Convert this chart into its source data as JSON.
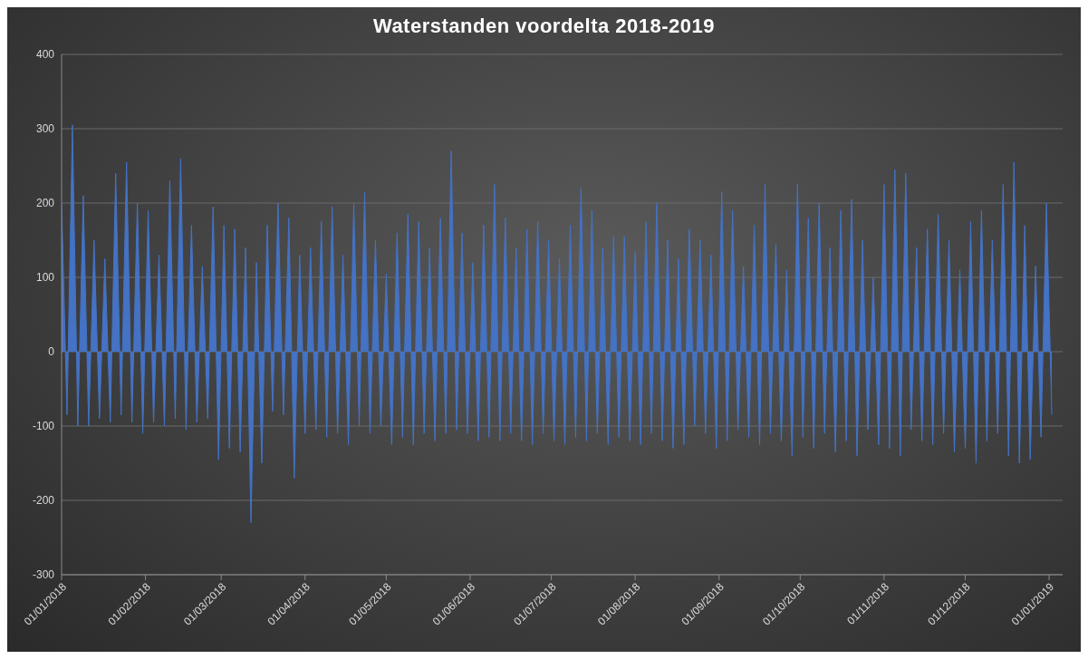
{
  "chart_data": {
    "type": "area",
    "title": "Waterstanden voordelta 2018-2019",
    "x": [
      "2018-01-01",
      "2018-01-03",
      "2018-01-05",
      "2018-01-07",
      "2018-01-09",
      "2018-01-11",
      "2018-01-13",
      "2018-01-15",
      "2018-01-17",
      "2018-01-19",
      "2018-01-21",
      "2018-01-23",
      "2018-01-25",
      "2018-01-27",
      "2018-01-29",
      "2018-01-31",
      "2018-02-02",
      "2018-02-04",
      "2018-02-06",
      "2018-02-08",
      "2018-02-10",
      "2018-02-12",
      "2018-02-14",
      "2018-02-16",
      "2018-02-18",
      "2018-02-20",
      "2018-02-22",
      "2018-02-24",
      "2018-02-26",
      "2018-02-28",
      "2018-03-02",
      "2018-03-04",
      "2018-03-06",
      "2018-03-08",
      "2018-03-10",
      "2018-03-12",
      "2018-03-14",
      "2018-03-16",
      "2018-03-18",
      "2018-03-20",
      "2018-03-22",
      "2018-03-24",
      "2018-03-26",
      "2018-03-28",
      "2018-03-30",
      "2018-04-01",
      "2018-04-03",
      "2018-04-05",
      "2018-04-07",
      "2018-04-09",
      "2018-04-11",
      "2018-04-13",
      "2018-04-15",
      "2018-04-17",
      "2018-04-19",
      "2018-04-21",
      "2018-04-23",
      "2018-04-25",
      "2018-04-27",
      "2018-04-29",
      "2018-05-01",
      "2018-05-03",
      "2018-05-05",
      "2018-05-07",
      "2018-05-09",
      "2018-05-11",
      "2018-05-13",
      "2018-05-15",
      "2018-05-17",
      "2018-05-19",
      "2018-05-21",
      "2018-05-23",
      "2018-05-25",
      "2018-05-27",
      "2018-05-29",
      "2018-05-31",
      "2018-06-02",
      "2018-06-04",
      "2018-06-06",
      "2018-06-08",
      "2018-06-10",
      "2018-06-12",
      "2018-06-14",
      "2018-06-16",
      "2018-06-18",
      "2018-06-20",
      "2018-06-22",
      "2018-06-24",
      "2018-06-26",
      "2018-06-28",
      "2018-06-30",
      "2018-07-02",
      "2018-07-04",
      "2018-07-06",
      "2018-07-08",
      "2018-07-10",
      "2018-07-12",
      "2018-07-14",
      "2018-07-16",
      "2018-07-18",
      "2018-07-20",
      "2018-07-22",
      "2018-07-24",
      "2018-07-26",
      "2018-07-28",
      "2018-07-30",
      "2018-08-01",
      "2018-08-03",
      "2018-08-05",
      "2018-08-07",
      "2018-08-09",
      "2018-08-11",
      "2018-08-13",
      "2018-08-15",
      "2018-08-17",
      "2018-08-19",
      "2018-08-21",
      "2018-08-23",
      "2018-08-25",
      "2018-08-27",
      "2018-08-29",
      "2018-08-31",
      "2018-09-02",
      "2018-09-04",
      "2018-09-06",
      "2018-09-08",
      "2018-09-10",
      "2018-09-12",
      "2018-09-14",
      "2018-09-16",
      "2018-09-18",
      "2018-09-20",
      "2018-09-22",
      "2018-09-24",
      "2018-09-26",
      "2018-09-28",
      "2018-09-30",
      "2018-10-02",
      "2018-10-04",
      "2018-10-06",
      "2018-10-08",
      "2018-10-10",
      "2018-10-12",
      "2018-10-14",
      "2018-10-16",
      "2018-10-18",
      "2018-10-20",
      "2018-10-22",
      "2018-10-24",
      "2018-10-26",
      "2018-10-28",
      "2018-10-30",
      "2018-11-01",
      "2018-11-03",
      "2018-11-05",
      "2018-11-07",
      "2018-11-09",
      "2018-11-11",
      "2018-11-13",
      "2018-11-15",
      "2018-11-17",
      "2018-11-19",
      "2018-11-21",
      "2018-11-23",
      "2018-11-25",
      "2018-11-27",
      "2018-11-29",
      "2018-12-01",
      "2018-12-03",
      "2018-12-05",
      "2018-12-07",
      "2018-12-09",
      "2018-12-11",
      "2018-12-13",
      "2018-12-15",
      "2018-12-17",
      "2018-12-19",
      "2018-12-21",
      "2018-12-23",
      "2018-12-25",
      "2018-12-27",
      "2018-12-29",
      "2018-12-31",
      "2019-01-02"
    ],
    "values": [
      200,
      -85,
      305,
      -100,
      210,
      -100,
      150,
      -90,
      125,
      -95,
      240,
      -85,
      255,
      -95,
      200,
      -110,
      190,
      -95,
      130,
      -100,
      230,
      -90,
      260,
      -105,
      170,
      -95,
      115,
      -90,
      195,
      -145,
      170,
      -130,
      165,
      -135,
      140,
      -230,
      120,
      -150,
      170,
      -80,
      200,
      -85,
      180,
      -170,
      130,
      -110,
      140,
      -105,
      175,
      -115,
      195,
      -110,
      130,
      -125,
      200,
      -100,
      215,
      -110,
      150,
      -100,
      105,
      -125,
      160,
      -115,
      185,
      -125,
      175,
      -110,
      140,
      -120,
      180,
      -110,
      270,
      -105,
      160,
      -110,
      120,
      -120,
      170,
      -115,
      225,
      -120,
      180,
      -110,
      140,
      -120,
      165,
      -125,
      175,
      -110,
      150,
      -120,
      125,
      -125,
      170,
      -115,
      220,
      -120,
      190,
      -110,
      140,
      -125,
      155,
      -115,
      155,
      -120,
      135,
      -125,
      175,
      -110,
      200,
      -120,
      150,
      -130,
      125,
      -125,
      165,
      -100,
      150,
      -110,
      130,
      -130,
      215,
      -120,
      190,
      -105,
      115,
      -115,
      170,
      -125,
      225,
      -110,
      145,
      -120,
      110,
      -140,
      225,
      -115,
      180,
      -130,
      200,
      -110,
      140,
      -135,
      190,
      -120,
      205,
      -140,
      150,
      -105,
      100,
      -125,
      225,
      -130,
      245,
      -140,
      240,
      -105,
      140,
      -120,
      165,
      -125,
      185,
      -110,
      150,
      -135,
      110,
      -130,
      175,
      -150,
      190,
      -120,
      150,
      -110,
      225,
      -140,
      255,
      -150,
      170,
      -145,
      115,
      -115,
      200,
      -85
    ],
    "color": "#4472c4",
    "xlim": [
      "2018-01-01",
      "2019-01-06"
    ],
    "xticks": [
      {
        "value": "2018-01-01",
        "label": "01/01/2018"
      },
      {
        "value": "2018-02-01",
        "label": "01/02/2018"
      },
      {
        "value": "2018-03-01",
        "label": "01/03/2018"
      },
      {
        "value": "2018-04-01",
        "label": "01/04/2018"
      },
      {
        "value": "2018-05-01",
        "label": "01/05/2018"
      },
      {
        "value": "2018-06-01",
        "label": "01/06/2018"
      },
      {
        "value": "2018-07-01",
        "label": "01/07/2018"
      },
      {
        "value": "2018-08-01",
        "label": "01/08/2018"
      },
      {
        "value": "2018-09-01",
        "label": "01/09/2018"
      },
      {
        "value": "2018-10-01",
        "label": "01/10/2018"
      },
      {
        "value": "2018-11-01",
        "label": "01/11/2018"
      },
      {
        "value": "2018-12-01",
        "label": "01/12/2018"
      },
      {
        "value": "2019-01-01",
        "label": "01/01/2019"
      }
    ],
    "ylim": [
      -300,
      400
    ],
    "yticks": [
      -300,
      -200,
      -100,
      0,
      100,
      200,
      300,
      400
    ],
    "grid": "y"
  }
}
